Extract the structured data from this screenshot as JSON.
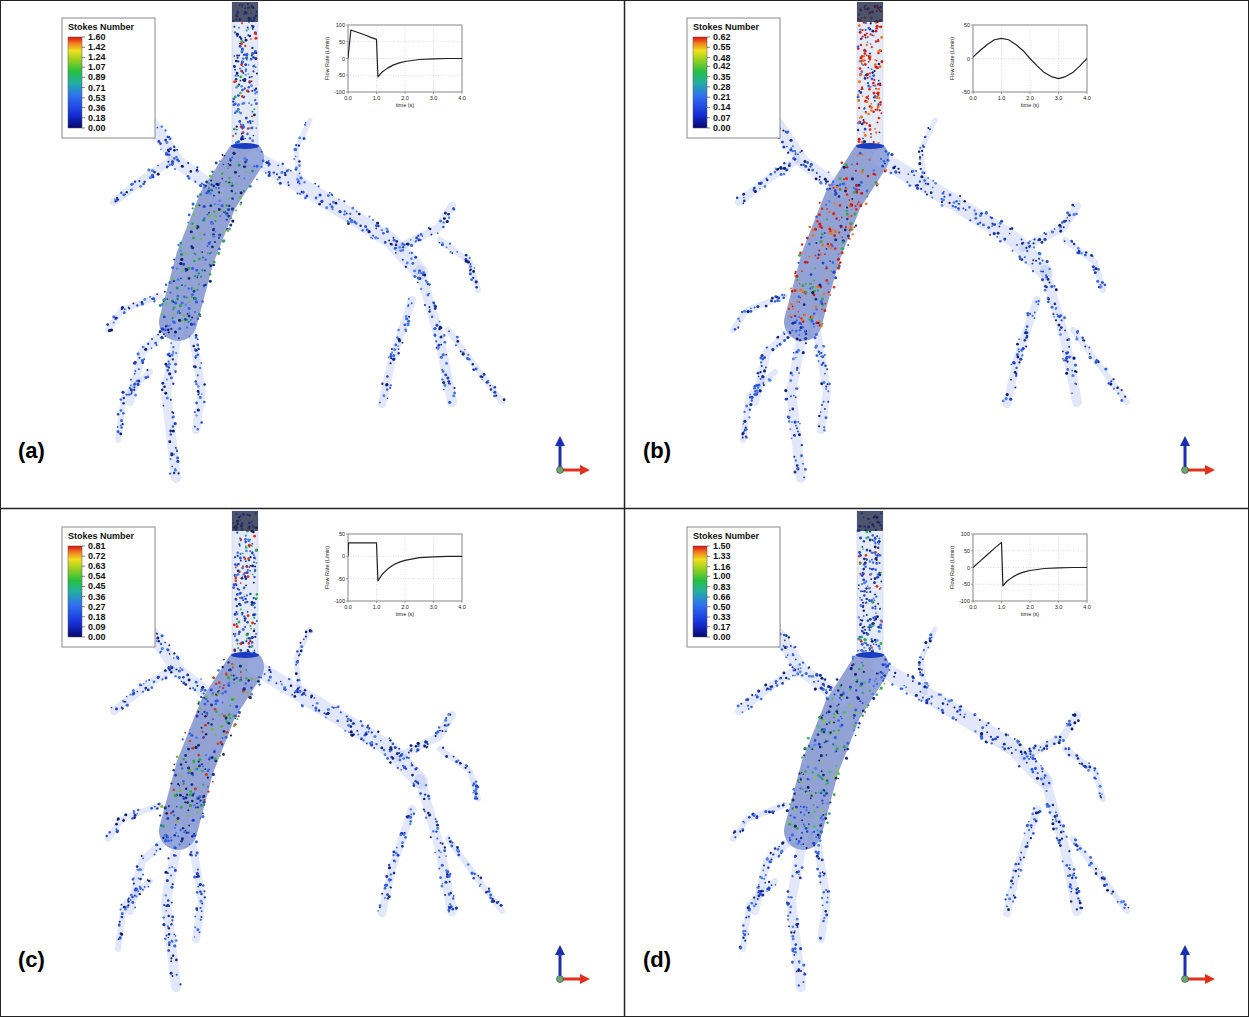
{
  "chart_data": [
    {
      "type": "line",
      "panel_label": "(a)",
      "xlabel": "time (s)",
      "ylabel": "Flow Rate (L/min)",
      "x": [
        0,
        0.1,
        0.2,
        0.4,
        0.6,
        0.8,
        1.0,
        1.05,
        1.2,
        1.4,
        1.6,
        1.8,
        2.0,
        2.5,
        3.0,
        3.5,
        4.0
      ],
      "values": [
        0,
        85,
        82,
        76,
        70,
        63,
        57,
        -55,
        -40,
        -28,
        -19,
        -13,
        -9,
        -3,
        -1,
        0,
        0
      ],
      "color": "#222222",
      "grid": true,
      "xlim": [
        0,
        4
      ],
      "xticks": [
        {
          "value": 0,
          "label": "0.0"
        },
        {
          "value": 1,
          "label": "1.0"
        },
        {
          "value": 2,
          "label": "2.0"
        },
        {
          "value": 3,
          "label": "3.0"
        },
        {
          "value": 4,
          "label": "4.0"
        }
      ],
      "ylim": [
        -100,
        100
      ],
      "yticks": [
        -100,
        -50,
        0,
        50,
        100
      ],
      "colorbar": {
        "title": "Stokes Number",
        "range": [
          0,
          1.6
        ],
        "ticks": [
          {
            "value": 1.6,
            "label": "1.60"
          },
          1.42,
          1.24,
          1.07,
          0.89,
          0.71,
          0.53,
          0.36,
          0.18,
          {
            "value": 0,
            "label": "0.00"
          }
        ]
      }
    },
    {
      "type": "line",
      "panel_label": "(b)",
      "xlabel": "time (s)",
      "ylabel": "Flow Rate (L/min)",
      "x": [
        0,
        0.25,
        0.5,
        0.75,
        1.0,
        1.25,
        1.5,
        1.75,
        2.0,
        2.25,
        2.5,
        2.75,
        3.0,
        3.25,
        3.5,
        3.75,
        4.0
      ],
      "values": [
        2,
        12,
        21,
        28,
        30,
        28,
        21,
        12,
        0,
        -11,
        -21,
        -27,
        -30,
        -27,
        -21,
        -11,
        0
      ],
      "color": "#222222",
      "grid": true,
      "xlim": [
        0,
        4
      ],
      "xticks": [
        {
          "value": 0,
          "label": "0.0"
        },
        {
          "value": 1,
          "label": "1.0"
        },
        {
          "value": 2,
          "label": "2.0"
        },
        {
          "value": 3,
          "label": "3.0"
        },
        {
          "value": 4,
          "label": "4.0"
        }
      ],
      "ylim": [
        -50,
        50
      ],
      "yticks": [
        -50,
        0,
        50
      ],
      "colorbar": {
        "title": "Stokes Number",
        "range": [
          0,
          0.62
        ],
        "ticks": [
          0.62,
          0.55,
          0.48,
          0.42,
          0.35,
          0.28,
          0.21,
          0.14,
          0.07,
          {
            "value": 0,
            "label": "0.00"
          }
        ]
      }
    },
    {
      "type": "line",
      "panel_label": "(c)",
      "xlabel": "time (s)",
      "ylabel": "Flow Rate (L/min)",
      "x": [
        0,
        0.02,
        0.5,
        1.0,
        1.05,
        1.2,
        1.4,
        1.6,
        1.8,
        2.0,
        2.5,
        3.0,
        3.5,
        4.0
      ],
      "values": [
        0,
        30,
        30,
        30,
        -55,
        -40,
        -28,
        -19,
        -13,
        -9,
        -3,
        -1,
        0,
        0
      ],
      "color": "#222222",
      "grid": true,
      "xlim": [
        0,
        4
      ],
      "xticks": [
        {
          "value": 0,
          "label": "0.0"
        },
        {
          "value": 1,
          "label": "1.0"
        },
        {
          "value": 2,
          "label": "2.0"
        },
        {
          "value": 3,
          "label": "3.0"
        },
        {
          "value": 4,
          "label": "4.0"
        }
      ],
      "ylim": [
        -100,
        50
      ],
      "yticks": [
        -100,
        -50,
        0,
        50
      ],
      "colorbar": {
        "title": "Stokes Number",
        "range": [
          0,
          0.81
        ],
        "ticks": [
          0.81,
          0.72,
          0.63,
          0.54,
          0.45,
          0.36,
          0.27,
          0.18,
          0.09,
          {
            "value": 0,
            "label": "0.00"
          }
        ]
      }
    },
    {
      "type": "line",
      "panel_label": "(d)",
      "xlabel": "time (s)",
      "ylabel": "Flow Rate (L/min)",
      "x": [
        0,
        0.25,
        0.5,
        0.75,
        1.0,
        1.05,
        1.2,
        1.4,
        1.6,
        1.8,
        2.0,
        2.5,
        3.0,
        3.5,
        4.0
      ],
      "values": [
        0,
        19,
        38,
        57,
        75,
        -55,
        -40,
        -28,
        -19,
        -13,
        -9,
        -3,
        -1,
        0,
        0
      ],
      "color": "#222222",
      "grid": true,
      "xlim": [
        0,
        4
      ],
      "xticks": [
        {
          "value": 0,
          "label": "0.0"
        },
        {
          "value": 1,
          "label": "1.0"
        },
        {
          "value": 2,
          "label": "2.0"
        },
        {
          "value": 3,
          "label": "3.0"
        },
        {
          "value": 4,
          "label": "4.0"
        }
      ],
      "ylim": [
        -100,
        100
      ],
      "yticks": [
        -100,
        -50,
        0,
        50,
        100
      ],
      "colorbar": {
        "title": "Stokes Number",
        "range": [
          0,
          1.5
        ],
        "ticks": [
          {
            "value": 1.5,
            "label": "1.50"
          },
          1.33,
          1.16,
          {
            "value": 1,
            "label": "1.00"
          },
          0.83,
          0.66,
          {
            "value": 0.5,
            "label": "0.50"
          },
          0.33,
          0.17,
          {
            "value": 0,
            "label": "0.00"
          }
        ]
      }
    }
  ]
}
